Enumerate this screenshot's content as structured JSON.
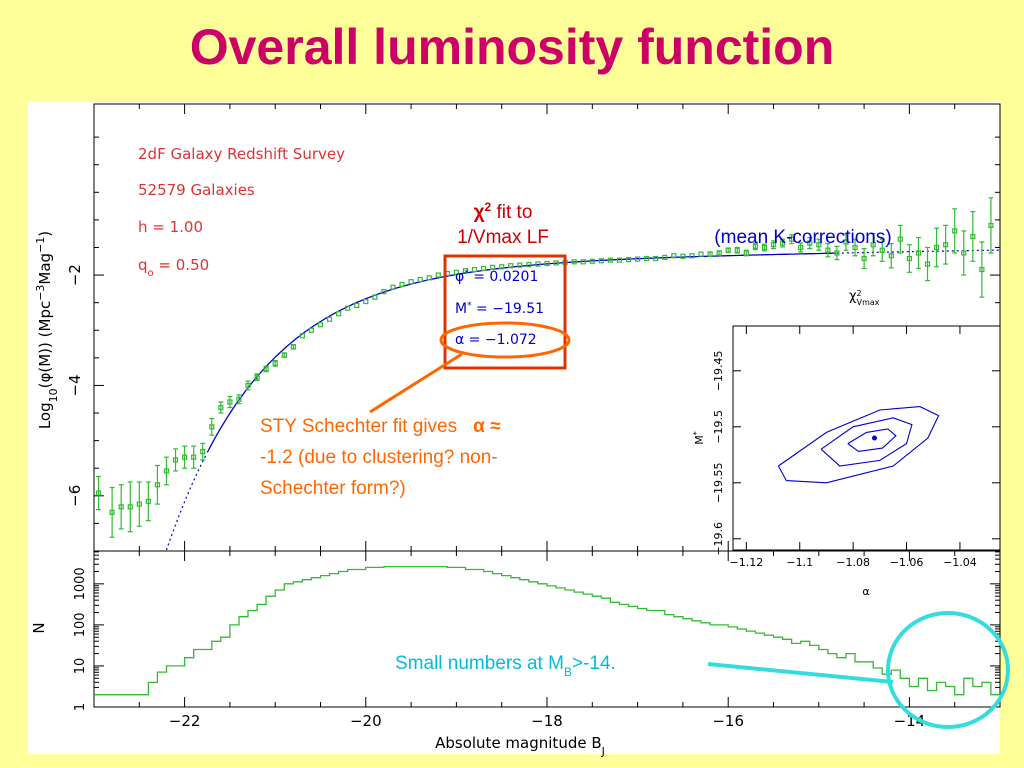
{
  "title": "Overall luminosity function",
  "annotations": {
    "survey": "2dF Galaxy Redshift Survey",
    "count": "52579 Galaxies",
    "h": "h = 1.00",
    "q0": "q",
    "q0_sub": "o",
    "q0_val": " = 0.50",
    "chi_fit_1": "χ",
    "chi_fit_sup": "2",
    "chi_fit_2": " fit to",
    "chi_fit_3": "1/Vmax LF",
    "mean_k": "(mean K-corrections)",
    "param_phi": "φ",
    "param_phi_val": " = 0.0201",
    "param_m": "M",
    "param_m_val": " = −19.51",
    "param_alpha": "α = −1.072",
    "sty_1": "STY Schechter fit gives",
    "sty_alpha": "α ≈",
    "sty_2": "-1.2 (due to clustering? non-",
    "sty_3": "Schechter form?)",
    "small_1": "Small numbers at M",
    "small_sub": "B",
    "small_2": ">-14."
  },
  "colors": {
    "data": "#33bb33",
    "fit": "#0000cc",
    "annot_red": "#dd3333",
    "orange": "#ff6600",
    "cyan": "#33dddd",
    "title": "#cc0066"
  },
  "chart_data": [
    {
      "type": "scatter",
      "xlabel": "Absolute magnitude B",
      "xlabel_sub": "J",
      "ylabel": "Log",
      "ylabel_sub": "10",
      "ylabel_rest": "(φ(M))   (Mpc",
      "ylabel_sup1": "−3",
      "ylabel_mid": "Mag",
      "ylabel_sup2": "−1",
      "ylabel_end": ")",
      "xlim": [
        -23,
        -13
      ],
      "ylim": [
        -7,
        1.1
      ],
      "x_ticks": [
        -22,
        -20,
        -18,
        -16,
        -14
      ],
      "x_tick_labels": [
        "−22",
        "−20",
        "−18",
        "−16",
        "−14"
      ],
      "y_ticks": [
        -2,
        -4,
        -6
      ],
      "y_tick_labels": [
        "−2",
        "−4",
        "−6"
      ],
      "schechter": {
        "phi_star": 0.0201,
        "M_star": -19.51,
        "alpha": -1.072
      },
      "series": [
        {
          "points": [
            [
              -22.95,
              -5.95,
              0.3
            ],
            [
              -22.8,
              -6.3,
              0.45
            ],
            [
              -22.7,
              -6.2,
              0.4
            ],
            [
              -22.6,
              -6.2,
              0.45
            ],
            [
              -22.5,
              -6.15,
              0.4
            ],
            [
              -22.4,
              -6.1,
              0.35
            ],
            [
              -22.3,
              -5.8,
              0.35
            ],
            [
              -22.2,
              -5.55,
              0.25
            ],
            [
              -22.1,
              -5.35,
              0.2
            ],
            [
              -22.0,
              -5.3,
              0.2
            ],
            [
              -21.9,
              -5.3,
              0.2
            ],
            [
              -21.8,
              -5.2,
              0.15
            ],
            [
              -21.7,
              -4.75,
              0.15
            ],
            [
              -21.6,
              -4.4,
              0.1
            ],
            [
              -21.5,
              -4.3,
              0.1
            ],
            [
              -21.4,
              -4.25,
              0.08
            ],
            [
              -21.3,
              -4.0,
              0.08
            ],
            [
              -21.2,
              -3.85,
              0.06
            ],
            [
              -21.1,
              -3.7,
              0.05
            ],
            [
              -21.0,
              -3.6,
              0.05
            ],
            [
              -20.9,
              -3.45,
              0.04
            ],
            [
              -20.8,
              -3.3,
              0.04
            ],
            [
              -20.7,
              -3.1,
              0.03
            ],
            [
              -20.6,
              -3.0,
              0.03
            ],
            [
              -20.5,
              -2.9,
              0.03
            ],
            [
              -20.4,
              -2.8,
              0.02
            ],
            [
              -20.3,
              -2.7,
              0.02
            ],
            [
              -20.2,
              -2.6,
              0.02
            ],
            [
              -20.1,
              -2.55,
              0.02
            ],
            [
              -20.0,
              -2.48,
              0.02
            ],
            [
              -19.9,
              -2.4,
              0.02
            ],
            [
              -19.8,
              -2.3,
              0.02
            ],
            [
              -19.7,
              -2.22,
              0.02
            ],
            [
              -19.6,
              -2.17,
              0.02
            ],
            [
              -19.5,
              -2.12,
              0.02
            ],
            [
              -19.4,
              -2.08,
              0.02
            ],
            [
              -19.3,
              -2.05,
              0.02
            ],
            [
              -19.2,
              -2.0,
              0.02
            ],
            [
              -19.1,
              -1.97,
              0.02
            ],
            [
              -19.0,
              -1.95,
              0.02
            ],
            [
              -18.9,
              -1.92,
              0.02
            ],
            [
              -18.8,
              -1.9,
              0.02
            ],
            [
              -18.7,
              -1.88,
              0.02
            ],
            [
              -18.6,
              -1.86,
              0.02
            ],
            [
              -18.5,
              -1.85,
              0.02
            ],
            [
              -18.4,
              -1.83,
              0.02
            ],
            [
              -18.3,
              -1.82,
              0.02
            ],
            [
              -18.2,
              -1.81,
              0.02
            ],
            [
              -18.1,
              -1.8,
              0.02
            ],
            [
              -18.0,
              -1.79,
              0.02
            ],
            [
              -17.9,
              -1.78,
              0.02
            ],
            [
              -17.8,
              -1.77,
              0.02
            ],
            [
              -17.7,
              -1.76,
              0.02
            ],
            [
              -17.6,
              -1.76,
              0.02
            ],
            [
              -17.5,
              -1.75,
              0.02
            ],
            [
              -17.4,
              -1.74,
              0.02
            ],
            [
              -17.3,
              -1.73,
              0.02
            ],
            [
              -17.2,
              -1.73,
              0.02
            ],
            [
              -17.1,
              -1.72,
              0.02
            ],
            [
              -17.0,
              -1.71,
              0.02
            ],
            [
              -16.9,
              -1.7,
              0.02
            ],
            [
              -16.8,
              -1.7,
              0.02
            ],
            [
              -16.7,
              -1.68,
              0.02
            ],
            [
              -16.6,
              -1.65,
              0.02
            ],
            [
              -16.5,
              -1.66,
              0.03
            ],
            [
              -16.4,
              -1.65,
              0.03
            ],
            [
              -16.3,
              -1.62,
              0.03
            ],
            [
              -16.2,
              -1.62,
              0.04
            ],
            [
              -16.1,
              -1.6,
              0.04
            ],
            [
              -16.0,
              -1.55,
              0.04
            ],
            [
              -15.9,
              -1.55,
              0.05
            ],
            [
              -15.8,
              -1.6,
              0.05
            ],
            [
              -15.7,
              -1.48,
              0.06
            ],
            [
              -15.6,
              -1.5,
              0.06
            ],
            [
              -15.5,
              -1.45,
              0.07
            ],
            [
              -15.4,
              -1.42,
              0.07
            ],
            [
              -15.3,
              -1.35,
              0.08
            ],
            [
              -15.2,
              -1.5,
              0.08
            ],
            [
              -15.1,
              -1.42,
              0.1
            ],
            [
              -15.0,
              -1.45,
              0.1
            ],
            [
              -14.9,
              -1.55,
              0.12
            ],
            [
              -14.8,
              -1.6,
              0.12
            ],
            [
              -14.7,
              -1.4,
              0.15
            ],
            [
              -14.6,
              -1.5,
              0.15
            ],
            [
              -14.5,
              -1.7,
              0.18
            ],
            [
              -14.4,
              -1.45,
              0.2
            ],
            [
              -14.3,
              -1.55,
              0.2
            ],
            [
              -14.2,
              -1.65,
              0.22
            ],
            [
              -14.1,
              -1.35,
              0.25
            ],
            [
              -14.0,
              -1.7,
              0.25
            ],
            [
              -13.9,
              -1.6,
              0.28
            ],
            [
              -13.8,
              -1.8,
              0.3
            ],
            [
              -13.7,
              -1.5,
              0.35
            ],
            [
              -13.6,
              -1.45,
              0.35
            ],
            [
              -13.5,
              -1.2,
              0.4
            ],
            [
              -13.4,
              -1.6,
              0.4
            ],
            [
              -13.3,
              -1.3,
              0.45
            ],
            [
              -13.2,
              -1.9,
              0.5
            ],
            [
              -13.1,
              -1.1,
              0.5
            ]
          ]
        }
      ]
    },
    {
      "type": "line",
      "ylabel": "N",
      "y_ticks": [
        1,
        10,
        100,
        1000
      ],
      "y_tick_labels": [
        "1",
        "10",
        "100",
        "1000"
      ],
      "ylim_log10": [
        0,
        3.8
      ],
      "x_edges": [
        -23.0,
        -22.8,
        -22.7,
        -22.6,
        -22.5,
        -22.4,
        -22.3,
        -22.2,
        -22.1,
        -22.0,
        -21.9,
        -21.8,
        -21.7,
        -21.6,
        -21.5,
        -21.4,
        -21.3,
        -21.2,
        -21.1,
        -21.0,
        -20.9,
        -20.8,
        -20.7,
        -20.6,
        -20.5,
        -20.4,
        -20.3,
        -20.2,
        -20.1,
        -20.0,
        -19.9,
        -19.8,
        -19.7,
        -19.6,
        -19.5,
        -19.4,
        -19.3,
        -19.2,
        -19.1,
        -19.0,
        -18.9,
        -18.8,
        -18.7,
        -18.6,
        -18.5,
        -18.4,
        -18.3,
        -18.2,
        -18.1,
        -18.0,
        -17.9,
        -17.8,
        -17.7,
        -17.6,
        -17.5,
        -17.4,
        -17.3,
        -17.2,
        -17.1,
        -17.0,
        -16.9,
        -16.8,
        -16.7,
        -16.6,
        -16.5,
        -16.4,
        -16.3,
        -16.2,
        -16.1,
        -16.0,
        -15.9,
        -15.8,
        -15.7,
        -15.6,
        -15.5,
        -15.4,
        -15.3,
        -15.2,
        -15.1,
        -15.0,
        -14.9,
        -14.8,
        -14.7,
        -14.6,
        -14.5,
        -14.4,
        -14.3,
        -14.2,
        -14.1,
        -14.0,
        -13.9,
        -13.8,
        -13.7,
        -13.6,
        -13.5,
        -13.4,
        -13.3,
        -13.2,
        -13.1,
        -13.0
      ],
      "log10_counts": [
        0.3,
        0.3,
        0.3,
        0.3,
        0.3,
        0.6,
        0.85,
        1.0,
        1.0,
        1.2,
        1.4,
        1.4,
        1.6,
        1.7,
        2.0,
        2.2,
        2.35,
        2.5,
        2.7,
        2.85,
        3.0,
        3.05,
        3.1,
        3.15,
        3.2,
        3.25,
        3.3,
        3.35,
        3.35,
        3.4,
        3.4,
        3.42,
        3.42,
        3.42,
        3.42,
        3.42,
        3.42,
        3.42,
        3.4,
        3.4,
        3.35,
        3.35,
        3.3,
        3.25,
        3.2,
        3.15,
        3.1,
        3.05,
        3.0,
        2.95,
        2.9,
        2.85,
        2.8,
        2.75,
        2.7,
        2.65,
        2.55,
        2.5,
        2.45,
        2.4,
        2.35,
        2.35,
        2.25,
        2.2,
        2.15,
        2.1,
        2.05,
        2.0,
        2.0,
        1.95,
        1.9,
        1.85,
        1.8,
        1.75,
        1.7,
        1.65,
        1.55,
        1.6,
        1.5,
        1.4,
        1.3,
        1.2,
        1.3,
        1.1,
        1.1,
        0.95,
        0.8,
        0.9,
        0.7,
        0.5,
        0.7,
        0.4,
        0.6,
        0.5,
        0.3,
        0.7,
        0.5,
        0.6,
        0.3
      ]
    },
    {
      "type": "line",
      "title": "χ",
      "title_sup": "2",
      "title_sub": "Vmax",
      "xlabel": "α",
      "ylabel": "M",
      "ylabel_sup": "*",
      "xlim": [
        -1.125,
        -1.025
      ],
      "ylim": [
        -19.61,
        -19.41
      ],
      "x_ticks": [
        -1.12,
        -1.1,
        -1.08,
        -1.06,
        -1.04
      ],
      "x_tick_labels": [
        "−1.12",
        "−1.1",
        "−1.08",
        "−1.06",
        "−1.04"
      ],
      "y_ticks": [
        -19.45,
        -19.5,
        -19.55,
        -19.6
      ],
      "y_tick_labels": [
        "−19.45",
        "−19.5",
        "−19.55",
        "−19.6"
      ],
      "best_fit": [
        -1.072,
        -19.51
      ],
      "contours": [
        [
          [
            -1.082,
            -19.515
          ],
          [
            -1.075,
            -19.505
          ],
          [
            -1.067,
            -19.502
          ],
          [
            -1.064,
            -19.508
          ],
          [
            -1.069,
            -19.519
          ],
          [
            -1.078,
            -19.522
          ],
          [
            -1.082,
            -19.515
          ]
        ],
        [
          [
            -1.092,
            -19.52
          ],
          [
            -1.08,
            -19.5
          ],
          [
            -1.065,
            -19.492
          ],
          [
            -1.058,
            -19.498
          ],
          [
            -1.06,
            -19.515
          ],
          [
            -1.07,
            -19.53
          ],
          [
            -1.085,
            -19.535
          ],
          [
            -1.092,
            -19.52
          ]
        ],
        [
          [
            -1.108,
            -19.535
          ],
          [
            -1.09,
            -19.505
          ],
          [
            -1.07,
            -19.485
          ],
          [
            -1.055,
            -19.482
          ],
          [
            -1.048,
            -19.49
          ],
          [
            -1.052,
            -19.51
          ],
          [
            -1.065,
            -19.535
          ],
          [
            -1.09,
            -19.55
          ],
          [
            -1.105,
            -19.548
          ],
          [
            -1.108,
            -19.535
          ]
        ]
      ]
    }
  ]
}
